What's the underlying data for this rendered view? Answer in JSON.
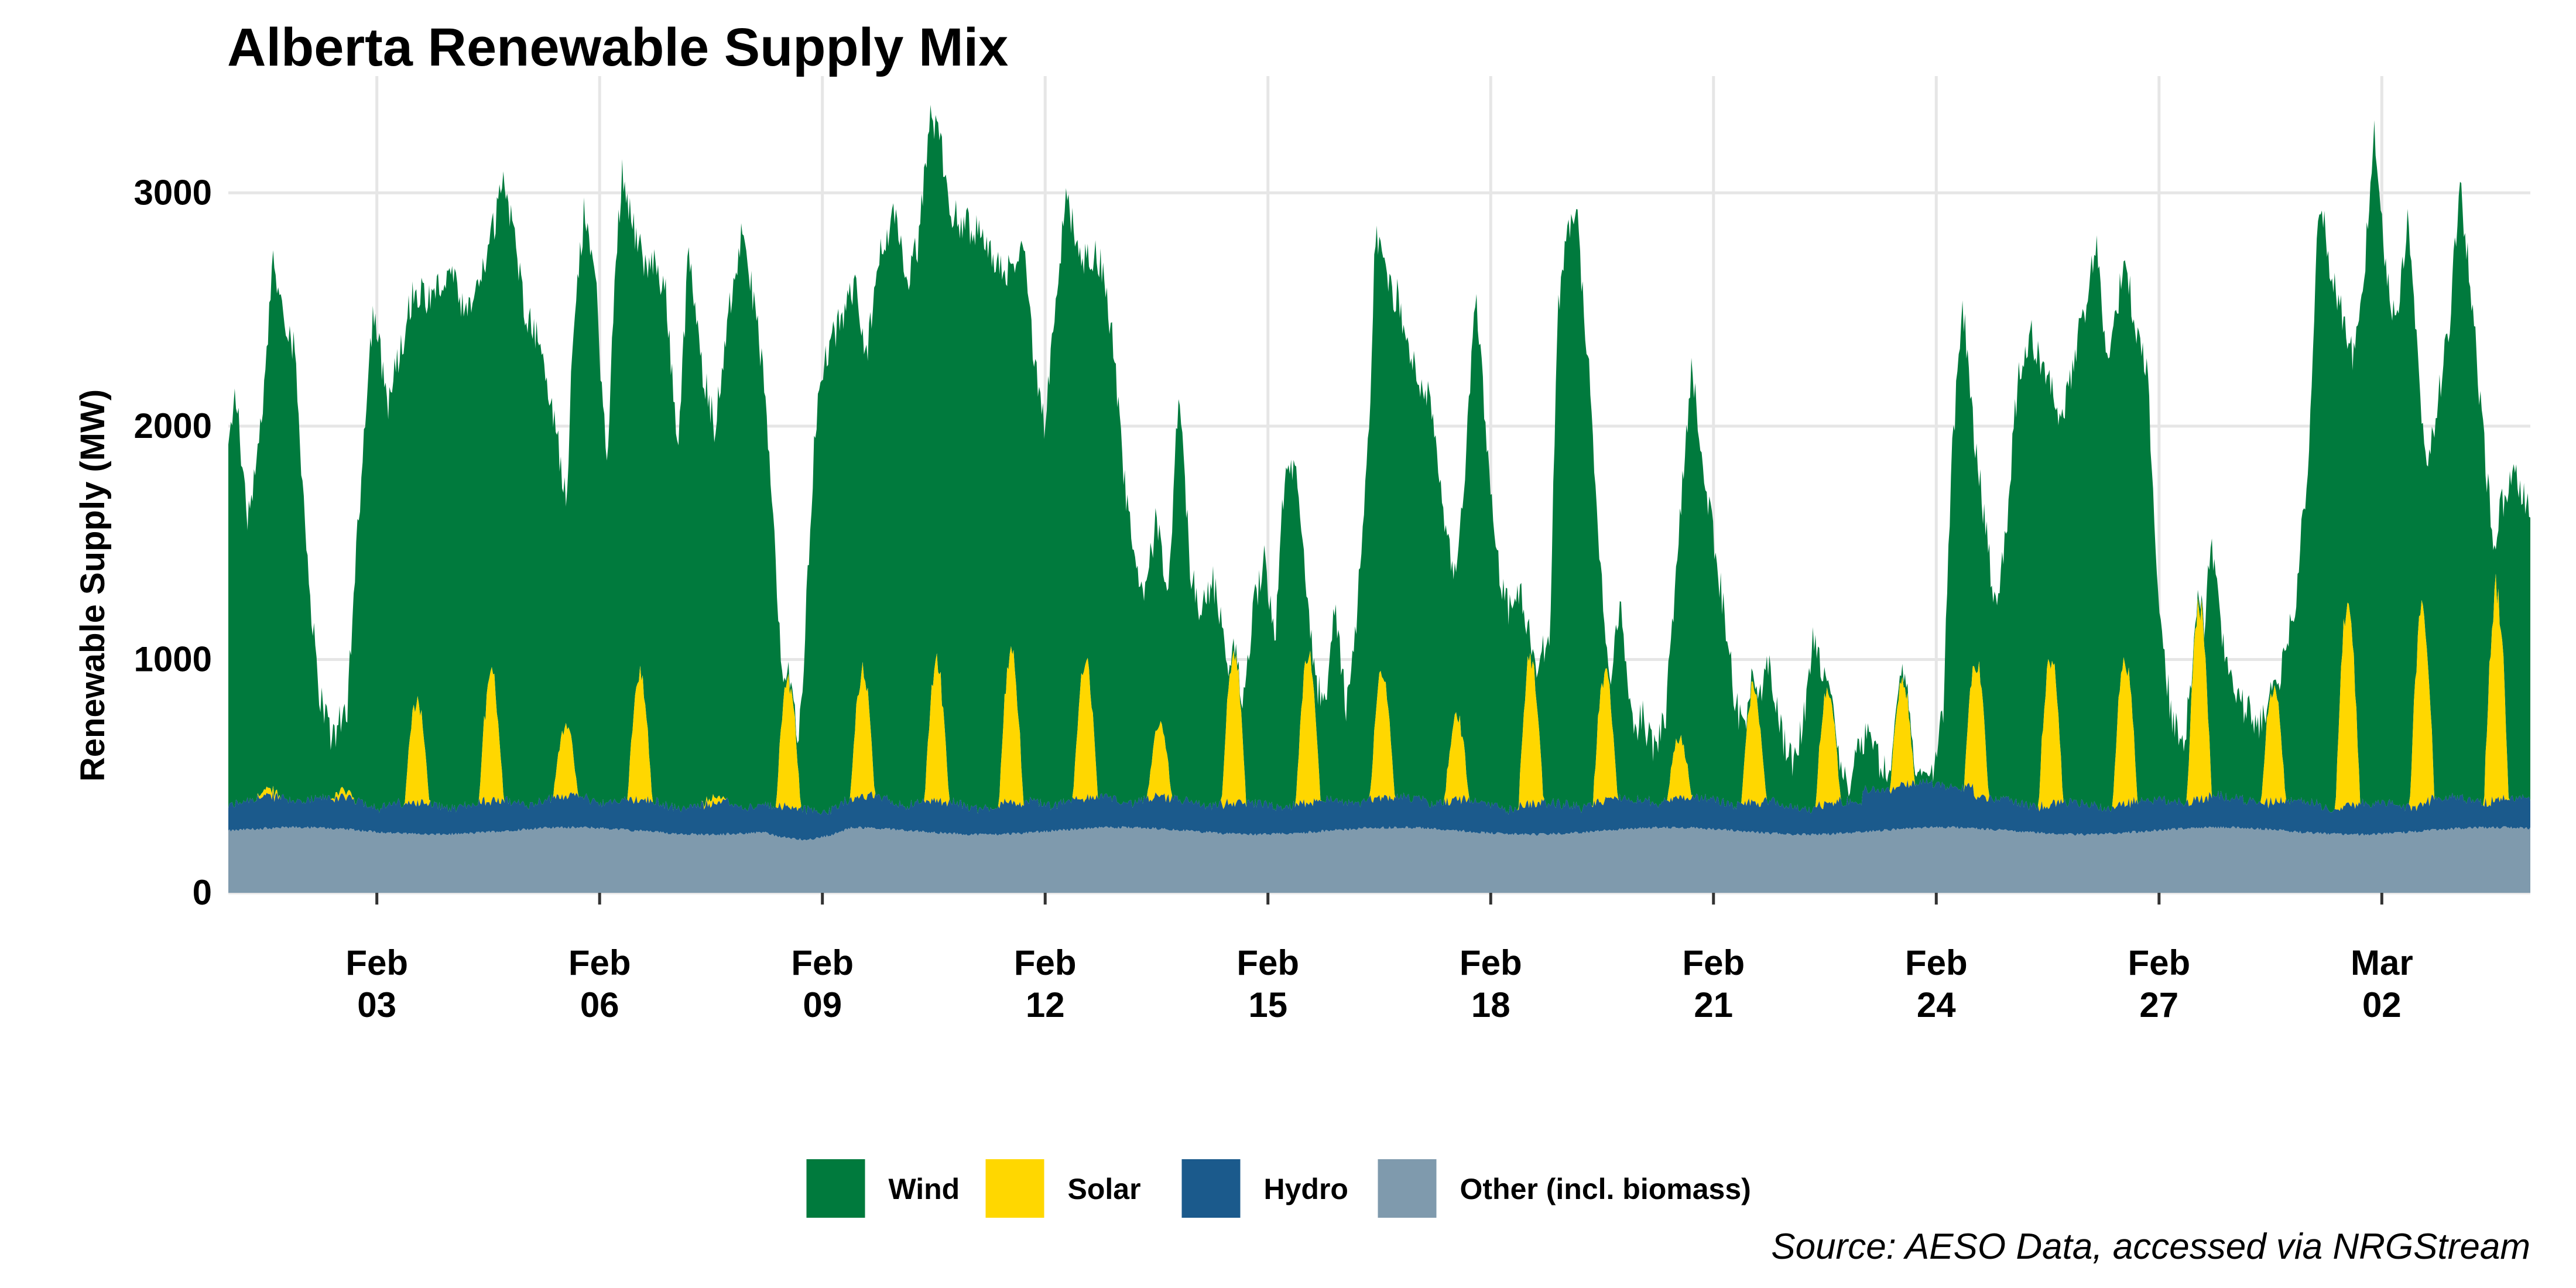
{
  "chart_data": {
    "type": "area",
    "stacked": true,
    "title": "Alberta Renewable Supply Mix",
    "xlabel": "",
    "ylabel": "Renewable Supply (MW)",
    "caption": "Source: AESO Data, accessed via NRGStream",
    "x_start_day": 0,
    "x_end_day": 31,
    "x_unit": "days since Feb 1 00:00 (hourly resolution)",
    "ylim": [
      0,
      3450
    ],
    "y_ticks": [
      0,
      1000,
      2000,
      3000
    ],
    "y_tick_labels": [
      "0",
      "1000",
      "2000",
      "3000"
    ],
    "x_ticks": [
      {
        "day": 2,
        "line1": "Feb",
        "line2": "03"
      },
      {
        "day": 5,
        "line1": "Feb",
        "line2": "06"
      },
      {
        "day": 8,
        "line1": "Feb",
        "line2": "09"
      },
      {
        "day": 11,
        "line1": "Feb",
        "line2": "12"
      },
      {
        "day": 14,
        "line1": "Feb",
        "line2": "15"
      },
      {
        "day": 17,
        "line1": "Feb",
        "line2": "18"
      },
      {
        "day": 20,
        "line1": "Feb",
        "line2": "21"
      },
      {
        "day": 23,
        "line1": "Feb",
        "line2": "24"
      },
      {
        "day": 26,
        "line1": "Feb",
        "line2": "27"
      },
      {
        "day": 29,
        "line1": "Mar",
        "line2": "02"
      }
    ],
    "legend_position": "bottom",
    "series": [
      {
        "name": "Wind",
        "label": "Wind",
        "color": "#007a3d",
        "note": "estimated total renewable supply (top of stack) at selected times; wind = total minus other layers",
        "total_points": [
          [
            0,
            1900
          ],
          [
            0.1,
            2150
          ],
          [
            0.25,
            1600
          ],
          [
            0.45,
            2000
          ],
          [
            0.6,
            2700
          ],
          [
            0.75,
            2500
          ],
          [
            0.9,
            2300
          ],
          [
            1.05,
            1500
          ],
          [
            1.2,
            900
          ],
          [
            1.4,
            650
          ],
          [
            1.6,
            800
          ],
          [
            1.85,
            2100
          ],
          [
            1.95,
            2500
          ],
          [
            2.15,
            2100
          ],
          [
            2.3,
            2300
          ],
          [
            2.5,
            2600
          ],
          [
            2.7,
            2550
          ],
          [
            3.0,
            2650
          ],
          [
            3.2,
            2450
          ],
          [
            3.45,
            2700
          ],
          [
            3.6,
            2900
          ],
          [
            3.7,
            3100
          ],
          [
            3.85,
            2800
          ],
          [
            4.0,
            2500
          ],
          [
            4.2,
            2350
          ],
          [
            4.4,
            2000
          ],
          [
            4.55,
            1700
          ],
          [
            4.65,
            2400
          ],
          [
            4.8,
            2950
          ],
          [
            4.95,
            2600
          ],
          [
            5.1,
            1800
          ],
          [
            5.2,
            2600
          ],
          [
            5.3,
            3100
          ],
          [
            5.45,
            2850
          ],
          [
            5.6,
            2700
          ],
          [
            5.75,
            2700
          ],
          [
            5.9,
            2550
          ],
          [
            6.05,
            1900
          ],
          [
            6.2,
            2750
          ],
          [
            6.35,
            2300
          ],
          [
            6.55,
            2000
          ],
          [
            6.75,
            2500
          ],
          [
            6.9,
            2800
          ],
          [
            7.05,
            2600
          ],
          [
            7.2,
            2250
          ],
          [
            7.35,
            1500
          ],
          [
            7.5,
            700
          ],
          [
            7.6,
            300
          ],
          [
            7.75,
            1000
          ],
          [
            7.9,
            2000
          ],
          [
            8.05,
            2300
          ],
          [
            8.25,
            2450
          ],
          [
            8.45,
            2600
          ],
          [
            8.6,
            2300
          ],
          [
            8.8,
            2800
          ],
          [
            9.0,
            2900
          ],
          [
            9.15,
            2600
          ],
          [
            9.3,
            2800
          ],
          [
            9.45,
            3350
          ],
          [
            9.6,
            3200
          ],
          [
            9.75,
            2900
          ],
          [
            10.0,
            2850
          ],
          [
            10.2,
            2800
          ],
          [
            10.35,
            2700
          ],
          [
            10.55,
            2650
          ],
          [
            10.7,
            2800
          ],
          [
            10.85,
            2300
          ],
          [
            11.0,
            2000
          ],
          [
            11.15,
            2600
          ],
          [
            11.3,
            3000
          ],
          [
            11.45,
            2700
          ],
          [
            11.6,
            2750
          ],
          [
            11.75,
            2700
          ],
          [
            11.9,
            2400
          ],
          [
            12.05,
            1800
          ],
          [
            12.2,
            1400
          ],
          [
            12.35,
            1300
          ],
          [
            12.5,
            1600
          ],
          [
            12.65,
            1200
          ],
          [
            12.8,
            2200
          ],
          [
            12.95,
            1400
          ],
          [
            13.1,
            1200
          ],
          [
            13.25,
            1350
          ],
          [
            13.4,
            1100
          ],
          [
            13.6,
            700
          ],
          [
            13.8,
            1200
          ],
          [
            13.95,
            1450
          ],
          [
            14.1,
            1100
          ],
          [
            14.2,
            1700
          ],
          [
            14.35,
            1850
          ],
          [
            14.5,
            1400
          ],
          [
            14.65,
            900
          ],
          [
            14.8,
            800
          ],
          [
            14.9,
            1250
          ],
          [
            15.05,
            800
          ],
          [
            15.2,
            1200
          ],
          [
            15.35,
            1900
          ],
          [
            15.45,
            2850
          ],
          [
            15.6,
            2600
          ],
          [
            15.75,
            2550
          ],
          [
            15.9,
            2300
          ],
          [
            16.05,
            2200
          ],
          [
            16.2,
            2100
          ],
          [
            16.35,
            1700
          ],
          [
            16.5,
            1300
          ],
          [
            16.65,
            1800
          ],
          [
            16.8,
            2550
          ],
          [
            16.95,
            1900
          ],
          [
            17.1,
            1400
          ],
          [
            17.25,
            1200
          ],
          [
            17.4,
            1300
          ],
          [
            17.6,
            950
          ],
          [
            17.8,
            1100
          ],
          [
            17.9,
            2500
          ],
          [
            18.05,
            2850
          ],
          [
            18.15,
            2950
          ],
          [
            18.35,
            2100
          ],
          [
            18.5,
            1300
          ],
          [
            18.6,
            900
          ],
          [
            18.75,
            1200
          ],
          [
            18.9,
            700
          ],
          [
            19.05,
            750
          ],
          [
            19.2,
            600
          ],
          [
            19.35,
            750
          ],
          [
            19.55,
            1600
          ],
          [
            19.7,
            2250
          ],
          [
            19.85,
            1900
          ],
          [
            20.0,
            1500
          ],
          [
            20.15,
            1200
          ],
          [
            20.3,
            800
          ],
          [
            20.45,
            700
          ],
          [
            20.6,
            800
          ],
          [
            20.75,
            1000
          ],
          [
            20.9,
            700
          ],
          [
            21.05,
            550
          ],
          [
            21.2,
            700
          ],
          [
            21.35,
            1100
          ],
          [
            21.5,
            900
          ],
          [
            21.65,
            600
          ],
          [
            21.8,
            450
          ],
          [
            21.95,
            650
          ],
          [
            22.1,
            700
          ],
          [
            22.25,
            550
          ],
          [
            22.4,
            500
          ],
          [
            22.55,
            450
          ],
          [
            22.7,
            400
          ],
          [
            22.8,
            350
          ],
          [
            22.95,
            500
          ],
          [
            23.1,
            800
          ],
          [
            23.2,
            1800
          ],
          [
            23.35,
            2550
          ],
          [
            23.5,
            2000
          ],
          [
            23.65,
            1600
          ],
          [
            23.8,
            1200
          ],
          [
            23.95,
            1600
          ],
          [
            24.1,
            2200
          ],
          [
            24.25,
            2400
          ],
          [
            24.4,
            2300
          ],
          [
            24.55,
            2200
          ],
          [
            24.7,
            2000
          ],
          [
            24.85,
            2300
          ],
          [
            25.0,
            2500
          ],
          [
            25.15,
            2800
          ],
          [
            25.3,
            2300
          ],
          [
            25.45,
            2550
          ],
          [
            25.55,
            2700
          ],
          [
            25.7,
            2400
          ],
          [
            25.85,
            2200
          ],
          [
            26.0,
            1200
          ],
          [
            26.15,
            800
          ],
          [
            26.3,
            600
          ],
          [
            26.45,
            900
          ],
          [
            26.6,
            1100
          ],
          [
            26.7,
            1500
          ],
          [
            26.85,
            1100
          ],
          [
            27.0,
            900
          ],
          [
            27.15,
            800
          ],
          [
            27.35,
            700
          ],
          [
            27.55,
            850
          ],
          [
            27.7,
            1000
          ],
          [
            27.85,
            1300
          ],
          [
            28.0,
            1800
          ],
          [
            28.15,
            3000
          ],
          [
            28.3,
            2700
          ],
          [
            28.45,
            2500
          ],
          [
            28.6,
            2300
          ],
          [
            28.75,
            2600
          ],
          [
            28.9,
            3300
          ],
          [
            29.05,
            2650
          ],
          [
            29.2,
            2400
          ],
          [
            29.35,
            2900
          ],
          [
            29.5,
            2200
          ],
          [
            29.6,
            1800
          ],
          [
            29.75,
            2100
          ],
          [
            29.9,
            2400
          ],
          [
            30.05,
            3050
          ],
          [
            30.2,
            2600
          ],
          [
            30.35,
            2000
          ],
          [
            30.5,
            1500
          ],
          [
            30.65,
            1700
          ],
          [
            30.8,
            1800
          ],
          [
            31.0,
            1650
          ]
        ]
      },
      {
        "name": "Solar",
        "label": "Solar",
        "color": "#ffd700",
        "note": "daily daytime peak above hydro layer (MW)",
        "daily_peak": [
          0.45,
          0.45,
          0.9,
          1.0,
          0.75,
          1.0,
          0.45,
          1.0,
          1.0,
          1.05,
          1.1,
          1.05,
          0.75,
          1.1,
          1.1,
          1.0,
          0.8,
          1.1,
          1.0,
          0.7,
          0.95,
          0.95,
          0.9,
          1.05,
          1.1,
          1.1,
          1.3,
          0.95,
          1.35,
          1.3,
          1.4
        ],
        "peak_hour": 13
      },
      {
        "name": "Hydro",
        "label": "Hydro",
        "color": "#1b5a8c",
        "note": "roughly 70-150 MW band above other"
      },
      {
        "name": "Other (incl. biomass)",
        "label": "Other (incl. biomass)",
        "color": "#7f9aad",
        "note": "roughly constant ~250-300 MW, small dip around Feb 07-08"
      }
    ]
  }
}
